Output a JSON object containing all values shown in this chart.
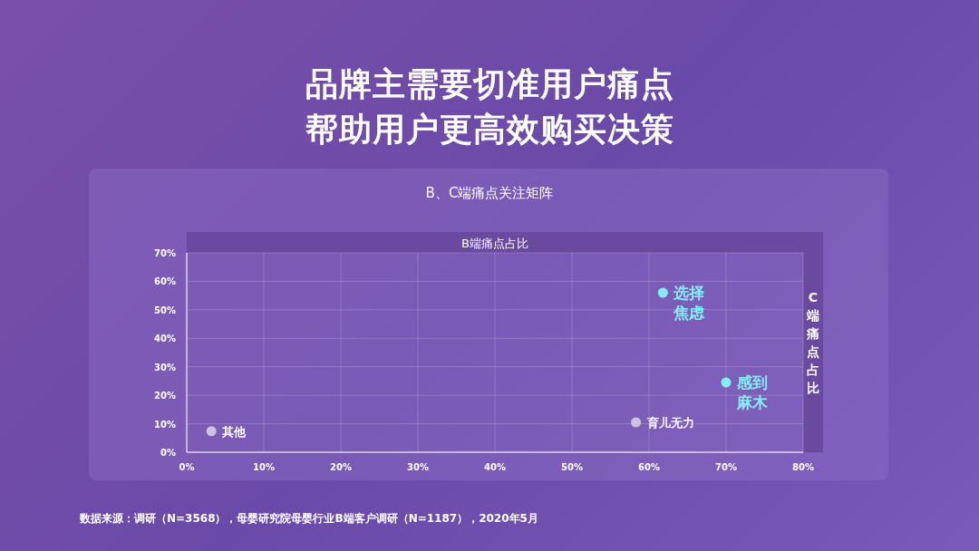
{
  "chart_data": {
    "type": "scatter",
    "title": "品牌主需要切准用户痛点帮助用户更高效购买决策",
    "subtitle": "B、C端痛点关注矩阵",
    "xlabel": "B端痛点占比",
    "ylabel": "C端痛点占比",
    "x": [
      3.2,
      58.3,
      61.8,
      70.0
    ],
    "values": [
      7.4,
      10.5,
      56,
      24.5
    ],
    "colors": [
      "#cbc3e0",
      "#cbc3e0",
      "#84eef5",
      "#84eef5"
    ],
    "marker": "circle",
    "grid": true,
    "xlim": [
      0,
      80
    ],
    "ylim": [
      0,
      70
    ],
    "xticks": [
      {
        "value": 0,
        "label": "0%"
      },
      {
        "value": 10,
        "label": "10%"
      },
      {
        "value": 20,
        "label": "20%"
      },
      {
        "value": 30,
        "label": "30%"
      },
      {
        "value": 40,
        "label": "40%"
      },
      {
        "value": 50,
        "label": "50%"
      },
      {
        "value": 60,
        "label": "60%"
      },
      {
        "value": 70,
        "label": "70%"
      },
      {
        "value": 80,
        "label": "80%"
      }
    ],
    "yticks": [
      {
        "value": 0,
        "label": "0%"
      },
      {
        "value": 10,
        "label": "10%"
      },
      {
        "value": 20,
        "label": "20%"
      },
      {
        "value": 30,
        "label": "30%"
      },
      {
        "value": 40,
        "label": "40%"
      },
      {
        "value": 50,
        "label": "50%"
      },
      {
        "value": 60,
        "label": "60%"
      },
      {
        "value": 70,
        "label": "70%"
      }
    ],
    "annotations": [
      {
        "text": "其他",
        "x": 3.2,
        "y": 7.4
      },
      {
        "text": "育儿无力",
        "x": 58.3,
        "y": 10.5
      },
      {
        "text": "选择焦虑",
        "x": 61.8,
        "y": 56
      },
      {
        "text": "感到麻木",
        "x": 70.0,
        "y": 24.5
      },
      "数据来源：调研（N=3568），母婴研究院母婴行业B端客户调研（N=1187），2020年5月"
    ]
  }
}
